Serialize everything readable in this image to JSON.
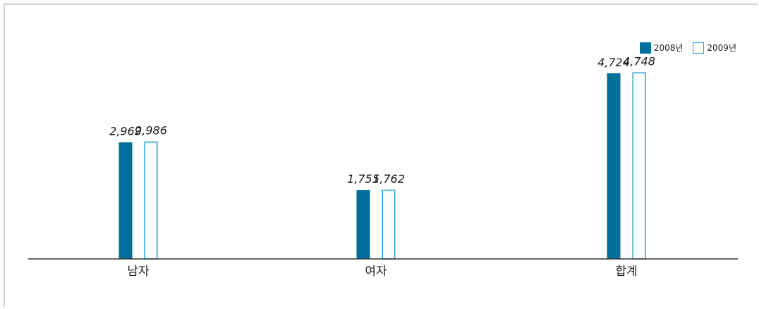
{
  "chart_data": {
    "type": "bar",
    "categories": [
      "남자",
      "여자",
      "합계"
    ],
    "series": [
      {
        "name": "2008년",
        "values": [
          2969,
          1755,
          4724
        ]
      },
      {
        "name": "2009년",
        "values": [
          2986,
          1762,
          4748
        ]
      }
    ],
    "value_labels": [
      [
        "2,969",
        "1,755",
        "4,724"
      ],
      [
        "2,986",
        "1,762",
        "4,748"
      ]
    ],
    "ylim": [
      0,
      5600
    ],
    "grid": false,
    "legend_position": "top-right",
    "title": "",
    "xlabel": "",
    "ylabel": ""
  },
  "colors": {
    "series_2008_fill": "#00709a",
    "series_2009_stroke": "#1a9fd6",
    "axis": "#333333"
  }
}
